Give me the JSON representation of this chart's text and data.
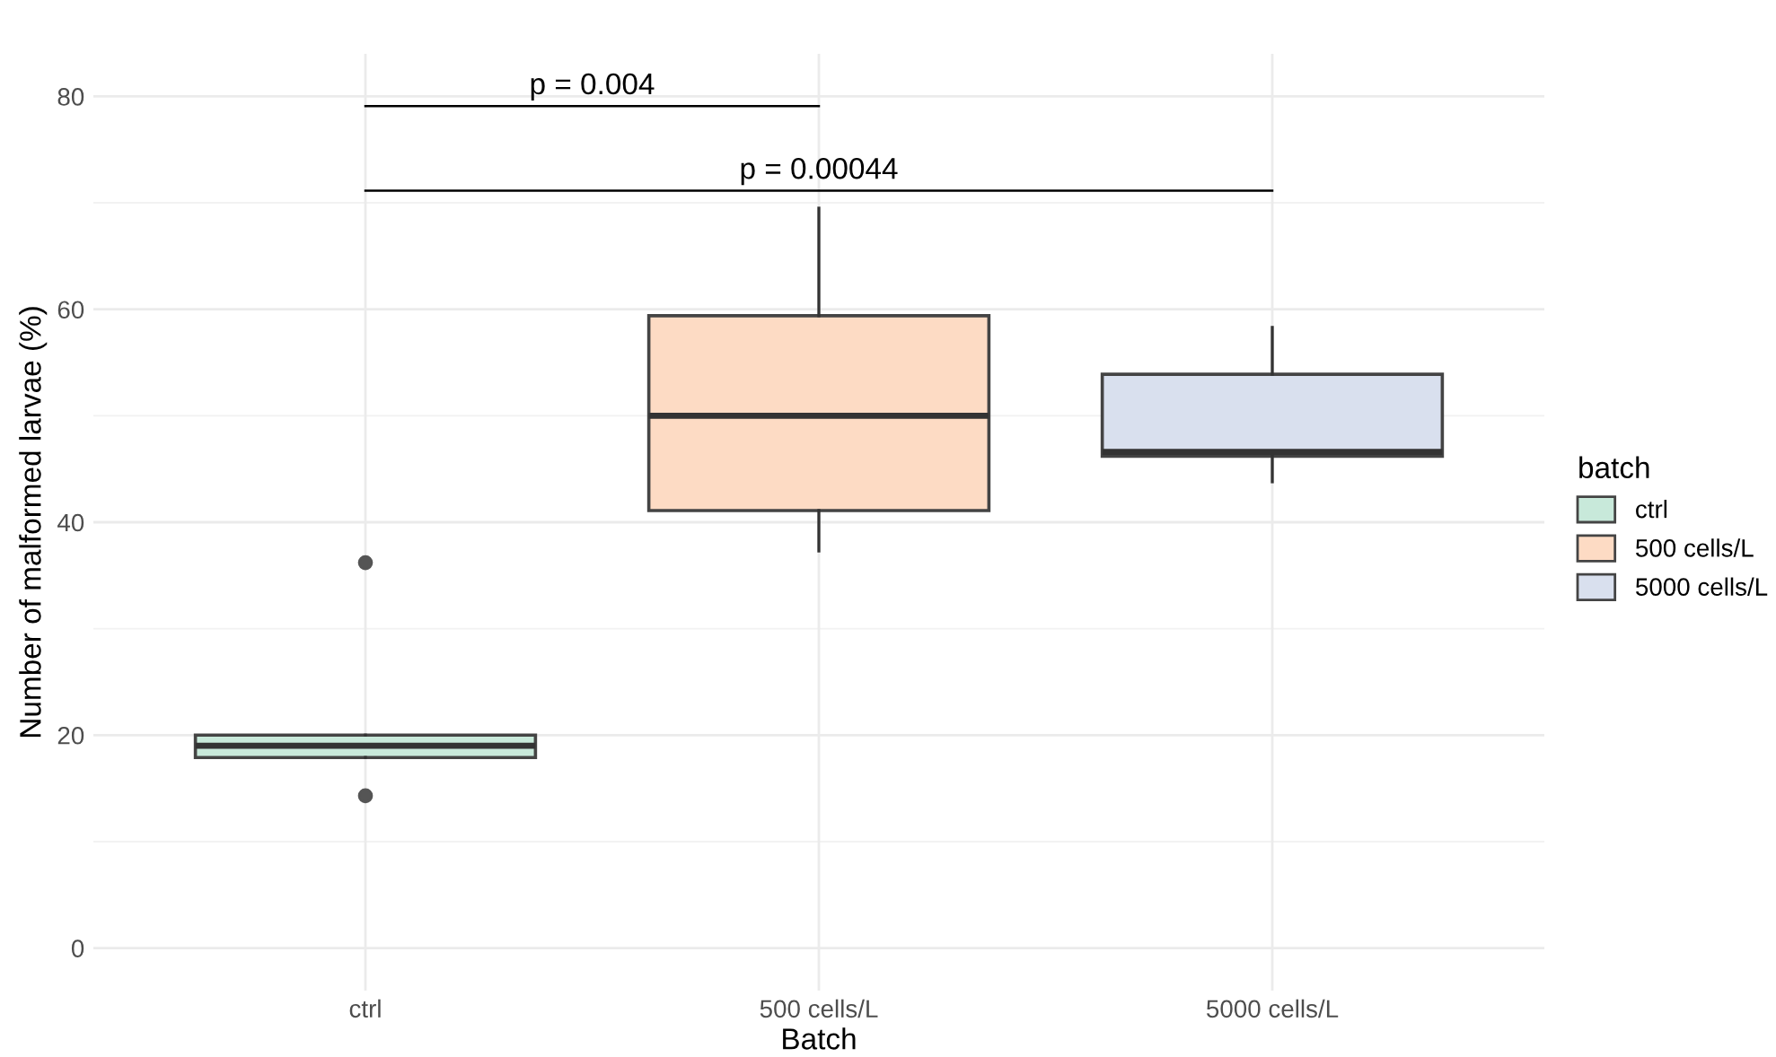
{
  "chart_data": {
    "type": "box",
    "xlabel": "Batch",
    "ylabel": "Number of malformed larvae (%)",
    "legend_title": "batch",
    "categories": [
      "ctrl",
      "500 cells/L",
      "5000 cells/L"
    ],
    "series": [
      {
        "name": "ctrl",
        "color": "#c8e9da",
        "boxes": [
          {
            "low": 17.9,
            "q1": 17.9,
            "median": 19.0,
            "q3": 20.0,
            "high": 20.0,
            "outliers": [
              36.2,
              14.3
            ]
          },
          null,
          null
        ]
      },
      {
        "name": "500 cells/L",
        "color": "#fddbc4",
        "boxes": [
          null,
          {
            "low": 37.3,
            "q1": 41.1,
            "median": 50.0,
            "q3": 59.4,
            "high": 69.5
          },
          null
        ]
      },
      {
        "name": "5000 cells/L",
        "color": "#d9e0ee",
        "boxes": [
          null,
          null,
          {
            "low": 43.8,
            "q1": 46.2,
            "median": 46.6,
            "q3": 53.9,
            "high": 58.3
          }
        ]
      }
    ],
    "annotations": [
      "p = 0.004",
      "p = 0.00044"
    ],
    "ylim": [
      -4,
      84
    ],
    "yticks": [
      0,
      20,
      40,
      60,
      80
    ],
    "grid": true,
    "legend": "right"
  }
}
